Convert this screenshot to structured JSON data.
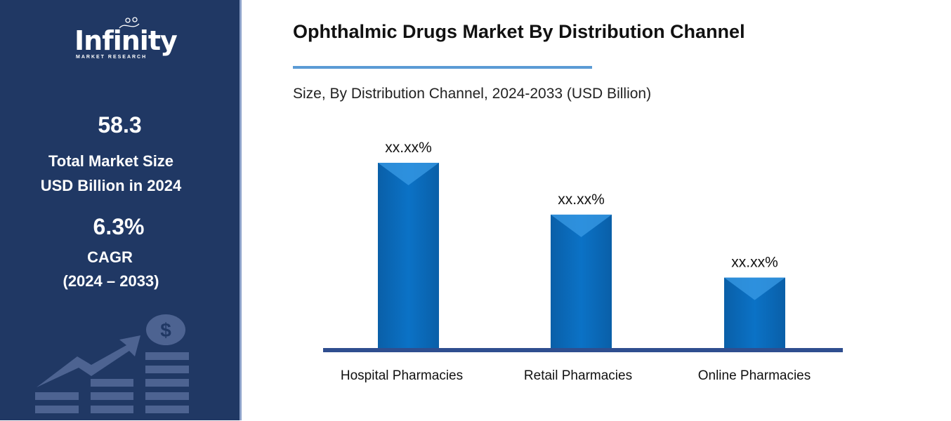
{
  "sidebar": {
    "logo": {
      "word": "Infinity",
      "sub": "MARKET RESEARCH"
    },
    "market_size": "58.3",
    "market_size_label_1": "Total Market Size",
    "market_size_label_2": "USD Billion in 2024",
    "cagr": "6.3%",
    "cagr_label": "CAGR",
    "cagr_period": "(2024 – 2033)",
    "decor_icon": "growth-chart-dollar-icon"
  },
  "colors": {
    "sidebar": "#203864",
    "bar": "#0b6fc2",
    "baseline": "#2f4e8f",
    "rule": "#5b9bd5"
  },
  "chart_data": {
    "type": "bar",
    "title": "Ophthalmic Drugs Market By Distribution Channel",
    "subtitle": "Size, By Distribution Channel, 2024-2033 (USD Billion)",
    "categories": [
      "Hospital Pharmacies",
      "Retail Pharmacies",
      "Online Pharmacies"
    ],
    "values": [
      1.0,
      0.72,
      0.38
    ],
    "data_labels": [
      "xx.xx%",
      "xx.xx%",
      "xx.xx%"
    ],
    "ylim": [
      0,
      1.0
    ],
    "grid": false,
    "legend": "none"
  }
}
